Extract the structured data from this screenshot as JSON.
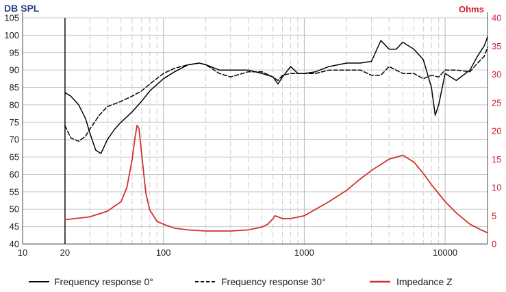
{
  "chart_data": {
    "type": "line",
    "left_axis": {
      "title": "DB SPL",
      "min": 40,
      "max": 105,
      "ticks": [
        40,
        45,
        50,
        55,
        60,
        65,
        70,
        75,
        80,
        85,
        90,
        95,
        100,
        105
      ]
    },
    "right_axis": {
      "title": "Ohms",
      "min": 0,
      "max": 40,
      "ticks": [
        0,
        5,
        10,
        15,
        20,
        25,
        30,
        35,
        40
      ]
    },
    "x_axis": {
      "scale": "log",
      "min": 10,
      "max": 20000,
      "ticks": [
        10,
        20,
        100,
        1000,
        10000
      ],
      "tick_labels": [
        "10",
        "20",
        "100",
        "1000",
        "10000"
      ]
    },
    "grid": true,
    "legend_position": "bottom",
    "colors": {
      "fr0": "#000000",
      "fr30": "#000000",
      "impedance": "#d0302a",
      "right_axis": "#d0202a",
      "left_title": "#2a3f8f"
    },
    "series": [
      {
        "name": "Frequency response 0°",
        "axis": "left",
        "style": "solid",
        "x": [
          20,
          22,
          25,
          28,
          30,
          33,
          36,
          40,
          45,
          50,
          60,
          70,
          80,
          100,
          120,
          150,
          180,
          200,
          250,
          300,
          400,
          500,
          600,
          650,
          700,
          800,
          900,
          1000,
          1200,
          1500,
          2000,
          2500,
          3000,
          3500,
          4000,
          4500,
          5000,
          6000,
          7000,
          8000,
          8500,
          9000,
          10000,
          12000,
          15000,
          17000,
          19000,
          20000
        ],
        "y": [
          83.5,
          82.5,
          80,
          76,
          72,
          67,
          66,
          70,
          73,
          75,
          78,
          81,
          84,
          87.5,
          89.5,
          91.5,
          92,
          91.5,
          90,
          90,
          90,
          89,
          88,
          86,
          88,
          91,
          89,
          89,
          89.5,
          91,
          92,
          92,
          92.5,
          98.5,
          96,
          96,
          98,
          96,
          93,
          85,
          77,
          80,
          89,
          87,
          90,
          94,
          97,
          99.5
        ]
      },
      {
        "name": "Frequency response 30°",
        "axis": "left",
        "style": "dashed",
        "x": [
          20,
          22,
          25,
          28,
          30,
          35,
          40,
          50,
          60,
          70,
          80,
          100,
          120,
          150,
          180,
          200,
          250,
          300,
          400,
          500,
          600,
          650,
          700,
          800,
          1000,
          1200,
          1500,
          2000,
          2500,
          3000,
          3500,
          4000,
          5000,
          6000,
          7000,
          8000,
          9000,
          10000,
          12000,
          15000,
          17000,
          19000,
          20000
        ],
        "y": [
          74,
          70.5,
          69.5,
          71,
          73,
          77,
          79.5,
          81,
          82.5,
          84,
          86,
          89,
          90.5,
          91.5,
          92,
          91.5,
          89,
          88,
          89.5,
          89.5,
          88,
          87,
          88.5,
          89,
          89,
          89,
          90,
          90,
          90,
          88.5,
          88.5,
          91,
          89,
          89,
          87.5,
          88.5,
          88,
          90,
          90,
          89.5,
          92,
          94,
          96.5
        ]
      },
      {
        "name": "Impedance Z",
        "axis": "right",
        "style": "solid",
        "x": [
          20,
          30,
          40,
          50,
          55,
          60,
          63,
          65,
          67,
          70,
          75,
          80,
          90,
          100,
          120,
          150,
          200,
          300,
          400,
          500,
          550,
          600,
          620,
          650,
          700,
          800,
          1000,
          1500,
          2000,
          2500,
          3000,
          4000,
          5000,
          6000,
          7000,
          8000,
          10000,
          12000,
          15000,
          18000,
          20000
        ],
        "y": [
          4.3,
          4.8,
          5.8,
          7.5,
          10,
          15,
          19,
          21,
          20.5,
          16,
          9,
          6,
          4,
          3.5,
          2.8,
          2.5,
          2.3,
          2.3,
          2.5,
          3,
          3.5,
          4.5,
          5,
          4.8,
          4.5,
          4.5,
          5,
          7.5,
          9.5,
          11.5,
          13,
          15,
          15.7,
          14.5,
          12.5,
          10.5,
          7.5,
          5.5,
          3.5,
          2.5,
          2
        ]
      }
    ]
  },
  "legend": [
    {
      "label": "Frequency response 0°"
    },
    {
      "label": "Frequency response 30°"
    },
    {
      "label": "Impedance Z"
    }
  ]
}
